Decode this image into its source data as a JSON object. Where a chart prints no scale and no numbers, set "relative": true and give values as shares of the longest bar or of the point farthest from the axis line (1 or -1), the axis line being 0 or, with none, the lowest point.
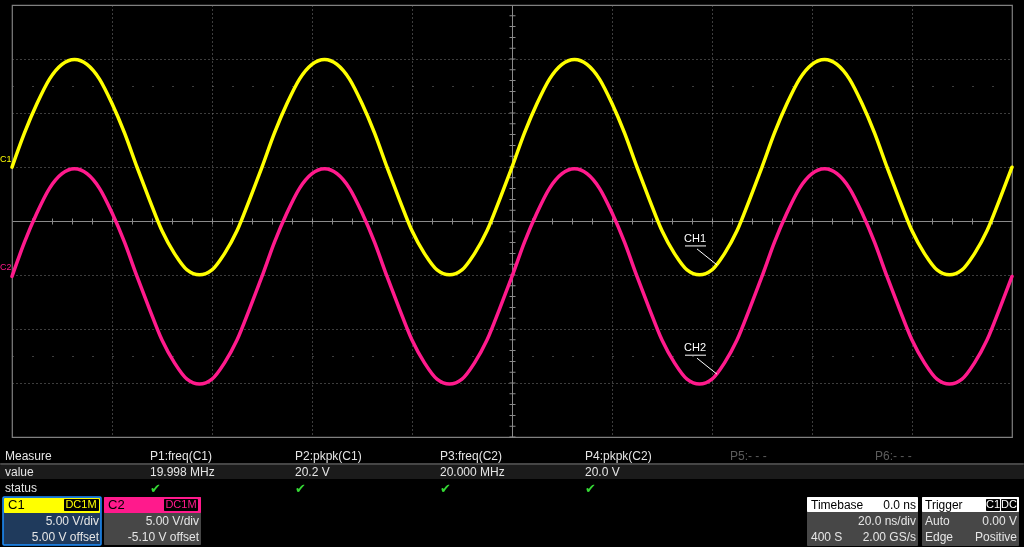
{
  "chart_data": {
    "type": "line",
    "relative": true,
    "categories": [
      null,
      null,
      null,
      null,
      null,
      null,
      null,
      null,
      null,
      null,
      null,
      null,
      null,
      null,
      null,
      null,
      null,
      null,
      null,
      null,
      null,
      null,
      null,
      null,
      null,
      null,
      null,
      null,
      null,
      null,
      null,
      null,
      null,
      null,
      null,
      null,
      null,
      null,
      null,
      null,
      null,
      null,
      null,
      null,
      null,
      null,
      null,
      null,
      null,
      null,
      null,
      null,
      null,
      null,
      null,
      null,
      null,
      null,
      null,
      null,
      null,
      null,
      null,
      null,
      null,
      null,
      null,
      null,
      null,
      null,
      null,
      null,
      null,
      null,
      null,
      null,
      null,
      null,
      null,
      null,
      null
    ],
    "series": [
      {
        "name": "CH1",
        "color": "#ffff00",
        "values": [
          0.33,
          0.54,
          0.72,
          0.87,
          0.96,
          0.99,
          0.96,
          0.87,
          0.72,
          0.54,
          0.33,
          0.13,
          -0.06,
          -0.2,
          -0.3,
          -0.33,
          -0.3,
          -0.2,
          -0.06,
          0.13,
          0.33,
          0.54,
          0.72,
          0.87,
          0.96,
          0.99,
          0.96,
          0.87,
          0.72,
          0.54,
          0.33,
          0.13,
          -0.06,
          -0.2,
          -0.3,
          -0.33,
          -0.3,
          -0.2,
          -0.06,
          0.13,
          0.33,
          0.54,
          0.72,
          0.87,
          0.96,
          0.99,
          0.96,
          0.87,
          0.72,
          0.54,
          0.33,
          0.13,
          -0.06,
          -0.2,
          -0.3,
          -0.33,
          -0.3,
          -0.2,
          -0.06,
          0.13,
          0.33,
          0.54,
          0.72,
          0.87,
          0.96,
          0.99,
          0.96,
          0.87,
          0.72,
          0.54,
          0.33,
          0.13,
          -0.06,
          -0.2,
          -0.3,
          -0.33,
          -0.3,
          -0.2,
          -0.06,
          0.13,
          0.33
        ]
      },
      {
        "name": "CH2",
        "color": "#ff1a8c",
        "values": [
          -0.34,
          -0.13,
          0.05,
          0.2,
          0.29,
          0.32,
          0.29,
          0.2,
          0.05,
          -0.13,
          -0.34,
          -0.54,
          -0.73,
          -0.87,
          -0.97,
          -1.0,
          -0.97,
          -0.87,
          -0.73,
          -0.54,
          -0.34,
          -0.13,
          0.05,
          0.2,
          0.29,
          0.32,
          0.29,
          0.2,
          0.05,
          -0.13,
          -0.34,
          -0.54,
          -0.73,
          -0.87,
          -0.97,
          -1.0,
          -0.97,
          -0.87,
          -0.73,
          -0.54,
          -0.34,
          -0.13,
          0.05,
          0.2,
          0.29,
          0.32,
          0.29,
          0.2,
          0.05,
          -0.13,
          -0.34,
          -0.54,
          -0.73,
          -0.87,
          -0.97,
          -1.0,
          -0.97,
          -0.87,
          -0.73,
          -0.54,
          -0.34,
          -0.13,
          0.05,
          0.2,
          0.29,
          0.32,
          0.29,
          0.2,
          0.05,
          -0.13,
          -0.34,
          -0.54,
          -0.73,
          -0.87,
          -0.97,
          -1.0,
          -0.97,
          -0.87,
          -0.73,
          -0.54,
          -0.34
        ]
      }
    ],
    "grid": true,
    "line_style": "solid",
    "annotations": [
      "Measure",
      "P1:freq(C1)",
      "P2:pkpk(C1)",
      "P3:freq(C2)",
      "P4:pkpk(C2)",
      "P5:- - -",
      "P6:- - -",
      "value",
      "19.998 MHz",
      "20.2 V",
      "20.000 MHz",
      "20.0 V",
      "status",
      "✔",
      "✔",
      "✔",
      "✔",
      "C1",
      "DC1M",
      "5.00 V/div",
      "5.00 V offset",
      "C2",
      "DC1M",
      "5.00 V/div",
      "-5.10 V offset",
      "Timebase",
      "0.0 ns",
      "20.0 ns/div",
      "400 S",
      "2.00 GS/s",
      "Trigger",
      "C1",
      "DC",
      "Auto",
      "0.00 V",
      "Edge",
      "Positive",
      "C1",
      "C2"
    ]
  }
}
